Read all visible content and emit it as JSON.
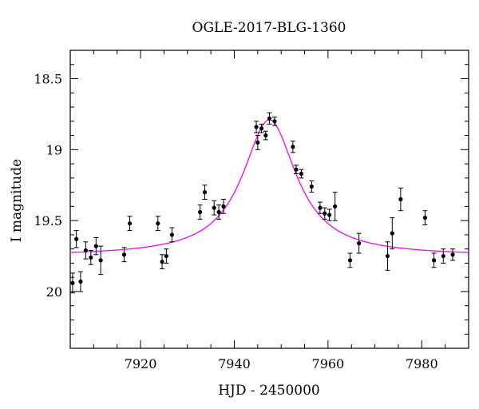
{
  "chart_data": {
    "type": "scatter",
    "title": "OGLE-2017-BLG-1360",
    "xlabel": "HJD - 2450000",
    "ylabel": "I magnitude",
    "xlim": [
      7905,
      7990
    ],
    "ylim": [
      20.4,
      18.3
    ],
    "y_inverted": true,
    "x_ticks": [
      7920,
      7940,
      7960,
      7980
    ],
    "x_tick_labels": [
      "7920",
      "7940",
      "7960",
      "7980"
    ],
    "y_ticks": [
      18.5,
      19,
      19.5,
      20
    ],
    "y_tick_labels": [
      "18.5",
      "19",
      "19.5",
      "20"
    ],
    "grid": false,
    "series": [
      {
        "kind": "points-with-errorbars",
        "color": "#000000",
        "x": [
          7905.5,
          7906.3,
          7907.2,
          7908.3,
          7909.4,
          7910.5,
          7911.5,
          7916.5,
          7917.7,
          7923.7,
          7924.6,
          7925.5,
          7926.7,
          7932.7,
          7933.7,
          7935.7,
          7936.7,
          7937.7,
          7944.7,
          7945.0,
          7945.8,
          7946.7,
          7947.5,
          7948.6,
          7952.5,
          7953.2,
          7954.3,
          7956.5,
          7958.3,
          7959.3,
          7960.3,
          7961.5,
          7964.7,
          7966.6,
          7972.7,
          7973.7,
          7975.5,
          7980.7,
          7982.6,
          7984.6,
          7986.6
        ],
        "y": [
          19.94,
          19.63,
          19.93,
          19.71,
          19.76,
          19.68,
          19.78,
          19.74,
          19.52,
          19.52,
          19.79,
          19.75,
          19.6,
          19.44,
          19.3,
          19.41,
          19.44,
          19.4,
          18.84,
          18.95,
          18.85,
          18.9,
          18.78,
          18.8,
          18.98,
          19.14,
          19.17,
          19.26,
          19.41,
          19.45,
          19.46,
          19.4,
          19.78,
          19.66,
          19.75,
          19.59,
          19.35,
          19.48,
          19.78,
          19.75,
          19.74
        ],
        "err": [
          0.07,
          0.06,
          0.07,
          0.06,
          0.05,
          0.06,
          0.1,
          0.05,
          0.05,
          0.05,
          0.05,
          0.05,
          0.05,
          0.05,
          0.05,
          0.05,
          0.05,
          0.05,
          0.04,
          0.05,
          0.03,
          0.03,
          0.04,
          0.03,
          0.04,
          0.03,
          0.03,
          0.04,
          0.04,
          0.04,
          0.04,
          0.1,
          0.05,
          0.07,
          0.1,
          0.11,
          0.08,
          0.05,
          0.05,
          0.05,
          0.04
        ]
      },
      {
        "kind": "model-curve",
        "color": "#ff00ff",
        "peak_x": 7947.5,
        "peak_mag": 18.79,
        "baseline_mag": 19.75,
        "width_days": 7.0
      }
    ]
  }
}
